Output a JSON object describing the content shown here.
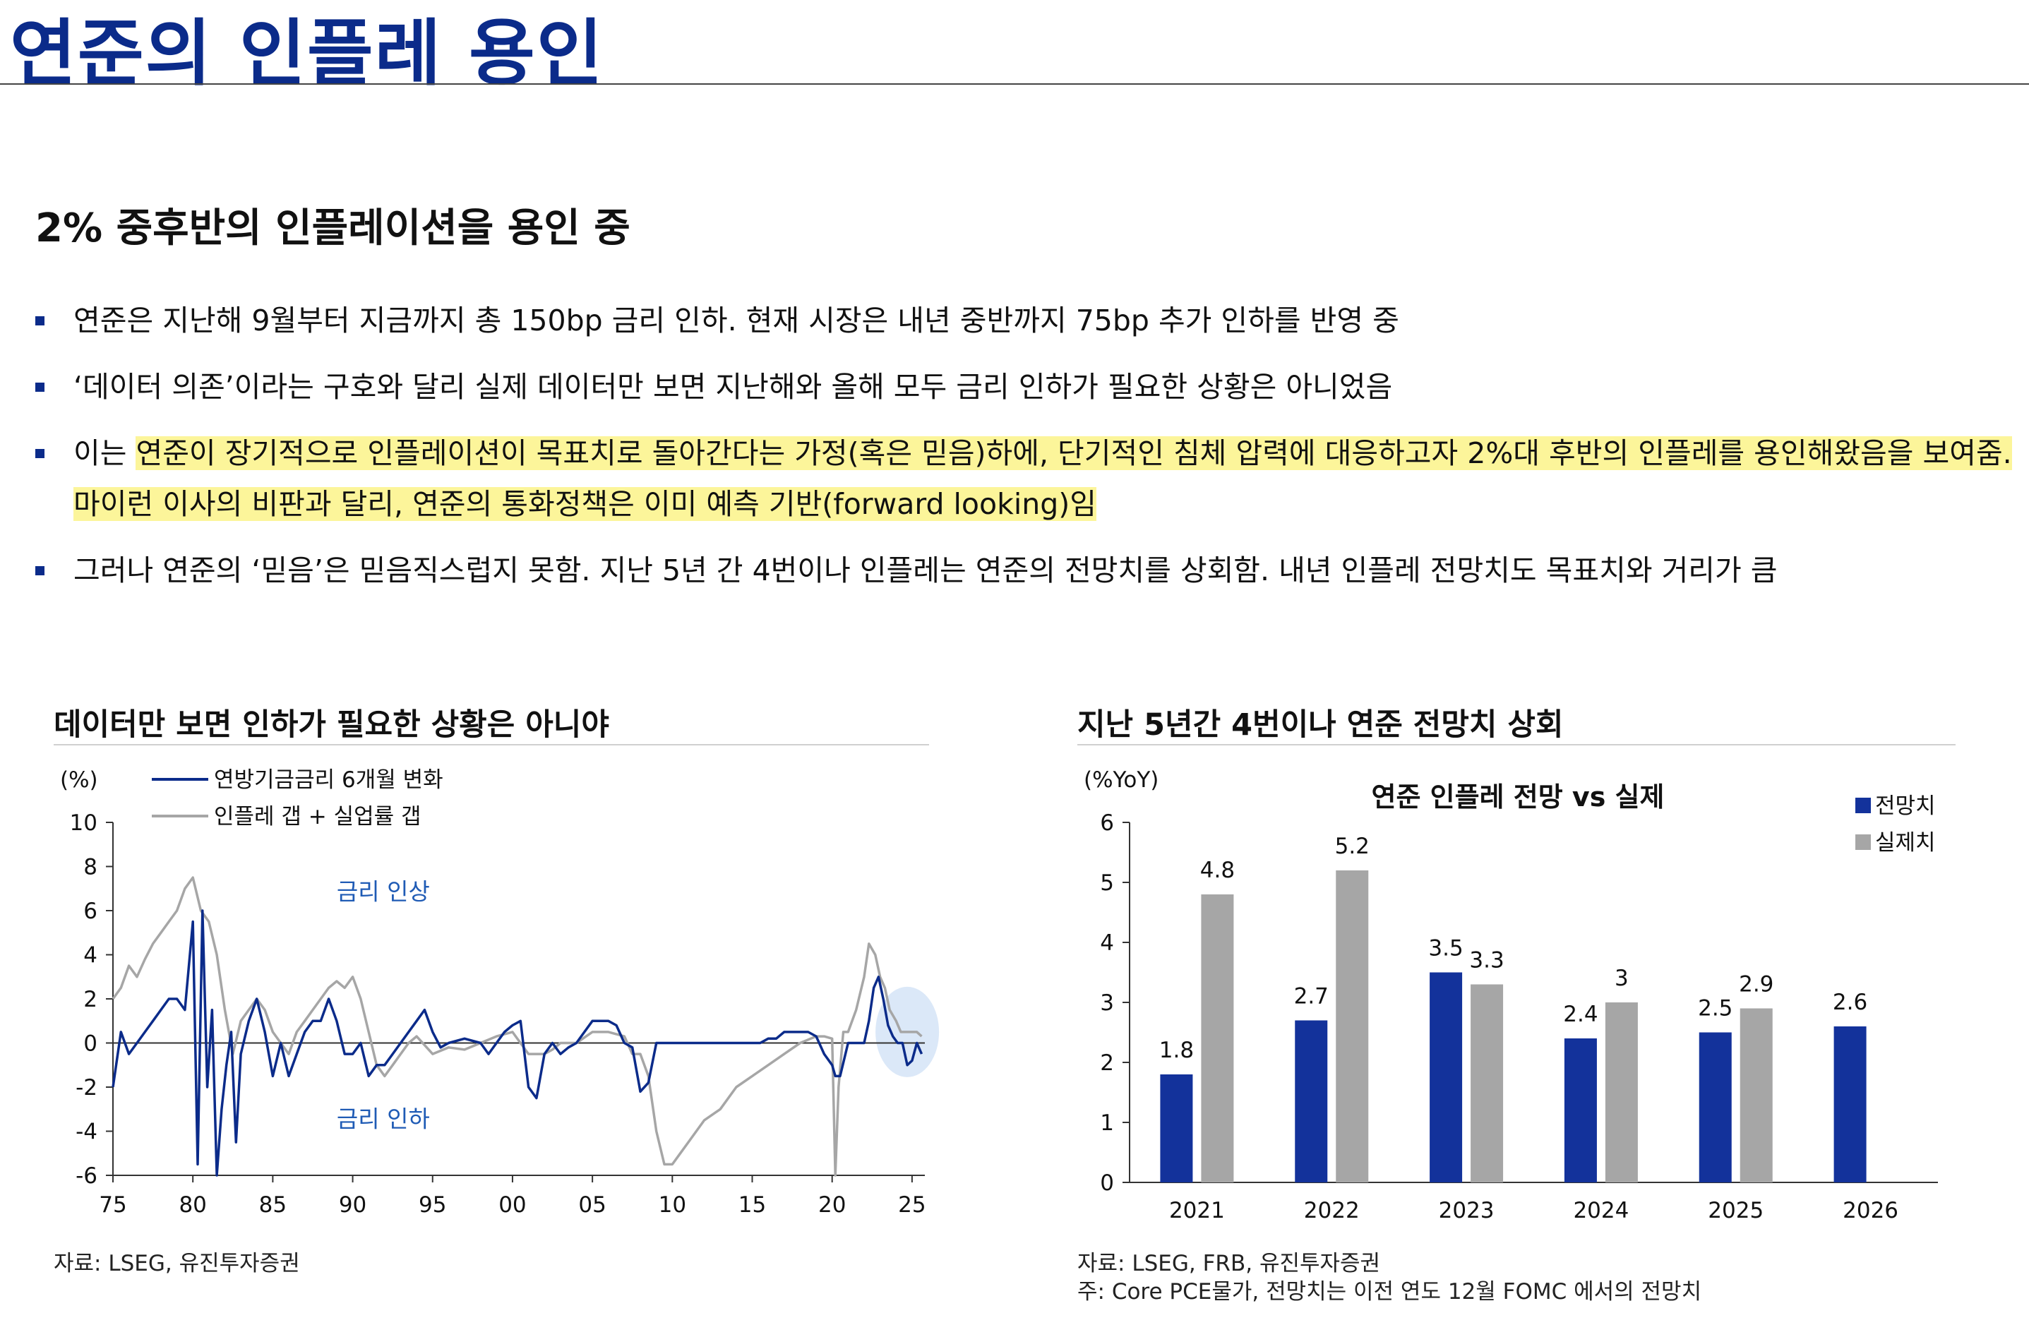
{
  "page": {
    "title": "연준의 인플레 용인",
    "subtitle": "2% 중후반의 인플레이션을 용인 중",
    "bullets": [
      {
        "pre": "연준은 지난해 9월부터 지금까지 총 150bp 금리 인하. 현재 시장은 내년 중반까지 75bp 추가 인하를 반영 중",
        "hl": "",
        "post": ""
      },
      {
        "pre": "‘데이터 의존’이라는 구호와 달리 실제 데이터만 보면 지난해와 올해 모두 금리 인하가 필요한 상황은 아니었음",
        "hl": "",
        "post": ""
      },
      {
        "pre": "이는 ",
        "hl": "연준이 장기적으로 인플레이션이 목표치로 돌아간다는 가정(혹은 믿음)하에, 단기적인 침체 압력에 대응하고자 2%대 후반의 인플레를 용인해왔음을 보여줌. 마이런 이사의 비판과 달리, 연준의 통화정책은 이미 예측 기반(forward looking)임",
        "post": ""
      },
      {
        "pre": "그러나 연준의 ‘믿음’은 믿음직스럽지 못함. 지난 5년 간 4번이나 인플레는 연준의 전망치를 상회함. 내년 인플레 전망치도 목표치와 거리가 큼",
        "hl": "",
        "post": ""
      }
    ]
  },
  "left_panel": {
    "title": "데이터만 보면 인하가 필요한 상황은 아니야",
    "source": "자료: LSEG, 유진투자증권"
  },
  "right_panel": {
    "title": "지난 5년간 4번이나 연준 전망치 상회",
    "source": "자료: LSEG, FRB, 유진투자증권",
    "note": "주: Core PCE물가, 전망치는 이전 연도 12월 FOMC 에서의 전망치"
  },
  "chart_data": [
    {
      "type": "line",
      "title": "",
      "unit_label": "(%)",
      "x_ticks": [
        "75",
        "80",
        "85",
        "90",
        "95",
        "00",
        "05",
        "10",
        "15",
        "20",
        "25"
      ],
      "x_range": [
        1975,
        2025.8
      ],
      "ylim": [
        -6,
        10
      ],
      "y_ticks": [
        10,
        8,
        6,
        4,
        2,
        0,
        -2,
        -4,
        -6
      ],
      "legend_placement": "top-left",
      "grid": false,
      "annotations": [
        {
          "text": "금리 인상",
          "x": 1989,
          "y": 6.5
        },
        {
          "text": "금리 인하",
          "x": 1989,
          "y": -3.8
        }
      ],
      "series": [
        {
          "name": "연방기금금리 6개월 변화",
          "color": "#0b2b8a",
          "x": [
            1975.0,
            1975.5,
            1976.0,
            1976.5,
            1977.0,
            1977.5,
            1978.0,
            1978.5,
            1979.0,
            1979.5,
            1980.0,
            1980.3,
            1980.6,
            1980.9,
            1981.2,
            1981.5,
            1981.8,
            1982.1,
            1982.4,
            1982.7,
            1983.0,
            1983.5,
            1984.0,
            1984.5,
            1985.0,
            1985.5,
            1986.0,
            1986.5,
            1987.0,
            1987.5,
            1988.0,
            1988.5,
            1989.0,
            1989.5,
            1990.0,
            1990.5,
            1991.0,
            1991.5,
            1992.0,
            1992.5,
            1993.0,
            1994.0,
            1994.5,
            1995.0,
            1995.5,
            1996.0,
            1997.0,
            1998.0,
            1998.5,
            1999.0,
            1999.5,
            2000.0,
            2000.5,
            2001.0,
            2001.5,
            2002.0,
            2002.5,
            2003.0,
            2003.5,
            2004.0,
            2004.5,
            2005.0,
            2005.5,
            2006.0,
            2006.5,
            2007.0,
            2007.5,
            2008.0,
            2008.5,
            2009.0,
            2010.0,
            2012.0,
            2014.0,
            2015.5,
            2016.0,
            2016.5,
            2017.0,
            2017.5,
            2018.0,
            2018.5,
            2019.0,
            2019.5,
            2020.0,
            2020.2,
            2020.5,
            2021.0,
            2021.5,
            2022.0,
            2022.3,
            2022.6,
            2022.9,
            2023.2,
            2023.5,
            2023.8,
            2024.1,
            2024.4,
            2024.7,
            2025.0,
            2025.3,
            2025.6
          ],
          "y": [
            -2.0,
            0.5,
            -0.5,
            0.0,
            0.5,
            1.0,
            1.5,
            2.0,
            2.0,
            1.5,
            5.5,
            -5.5,
            6.0,
            -2.0,
            1.5,
            -6.0,
            -3.0,
            -1.0,
            0.5,
            -4.5,
            -0.5,
            1.0,
            2.0,
            0.5,
            -1.5,
            0.0,
            -1.5,
            -0.5,
            0.5,
            1.0,
            1.0,
            2.0,
            1.0,
            -0.5,
            -0.5,
            0.0,
            -1.5,
            -1.0,
            -1.0,
            -0.5,
            0.0,
            1.0,
            1.5,
            0.5,
            -0.2,
            0.0,
            0.2,
            0.0,
            -0.5,
            0.0,
            0.5,
            0.8,
            1.0,
            -2.0,
            -2.5,
            -0.5,
            0.0,
            -0.5,
            -0.2,
            0.0,
            0.5,
            1.0,
            1.0,
            1.0,
            0.8,
            0.0,
            -0.2,
            -2.2,
            -1.8,
            0.0,
            0.0,
            0.0,
            0.0,
            0.0,
            0.2,
            0.2,
            0.5,
            0.5,
            0.5,
            0.5,
            0.3,
            -0.5,
            -1.0,
            -1.5,
            -1.5,
            0.0,
            0.0,
            0.0,
            1.0,
            2.5,
            3.0,
            2.0,
            0.8,
            0.3,
            0.0,
            0.0,
            -1.0,
            -0.8,
            0.0,
            -0.5
          ]
        },
        {
          "name": "인플레 갭 + 실업률 갭",
          "color": "#a6a6a6",
          "x": [
            1975.0,
            1975.5,
            1976.0,
            1976.5,
            1977.0,
            1977.5,
            1978.0,
            1978.5,
            1979.0,
            1979.5,
            1980.0,
            1980.5,
            1981.0,
            1981.5,
            1982.0,
            1982.5,
            1983.0,
            1983.5,
            1984.0,
            1984.5,
            1985.0,
            1985.5,
            1986.0,
            1986.5,
            1987.0,
            1987.5,
            1988.0,
            1988.5,
            1989.0,
            1989.5,
            1990.0,
            1990.5,
            1991.0,
            1991.5,
            1992.0,
            1992.5,
            1993.0,
            1993.5,
            1994.0,
            1995.0,
            1996.0,
            1997.0,
            1998.0,
            1999.0,
            2000.0,
            2001.0,
            2001.5,
            2002.0,
            2002.5,
            2003.0,
            2003.5,
            2004.0,
            2005.0,
            2006.0,
            2007.0,
            2007.5,
            2008.0,
            2008.5,
            2009.0,
            2009.5,
            2010.0,
            2010.5,
            2011.0,
            2012.0,
            2013.0,
            2014.0,
            2015.0,
            2016.0,
            2017.0,
            2018.0,
            2019.0,
            2019.5,
            2020.0,
            2020.2,
            2020.4,
            2020.7,
            2021.0,
            2021.5,
            2022.0,
            2022.3,
            2022.7,
            2023.0,
            2023.3,
            2023.6,
            2024.0,
            2024.3,
            2024.7,
            2025.0,
            2025.3,
            2025.6
          ],
          "y": [
            2.0,
            2.5,
            3.5,
            3.0,
            3.8,
            4.5,
            5.0,
            5.5,
            6.0,
            7.0,
            7.5,
            6.0,
            5.5,
            4.0,
            1.5,
            -0.5,
            1.0,
            1.5,
            2.0,
            1.5,
            0.5,
            0.0,
            -0.5,
            0.5,
            1.0,
            1.5,
            2.0,
            2.5,
            2.8,
            2.5,
            3.0,
            2.0,
            0.5,
            -1.0,
            -1.5,
            -1.0,
            -0.5,
            0.0,
            0.3,
            -0.5,
            -0.2,
            -0.3,
            0.0,
            0.3,
            0.5,
            -0.5,
            -0.5,
            -0.5,
            -0.3,
            0.0,
            0.0,
            0.0,
            0.5,
            0.5,
            0.3,
            -0.5,
            -0.5,
            -1.5,
            -4.0,
            -5.5,
            -5.5,
            -5.0,
            -4.5,
            -3.5,
            -3.0,
            -2.0,
            -1.5,
            -1.0,
            -0.5,
            0.0,
            0.3,
            0.3,
            0.2,
            -6.0,
            -2.0,
            0.5,
            0.5,
            1.5,
            3.0,
            4.5,
            4.0,
            3.0,
            2.5,
            1.5,
            1.0,
            0.5,
            0.5,
            0.5,
            0.5,
            0.3
          ]
        }
      ]
    },
    {
      "type": "bar",
      "title": "연준 인플레 전망 vs 실제",
      "unit_label": "(%YoY)",
      "categories": [
        "2021",
        "2022",
        "2023",
        "2024",
        "2025",
        "2026"
      ],
      "ylim": [
        0,
        6
      ],
      "y_ticks": [
        6,
        5,
        4,
        3,
        2,
        1,
        0
      ],
      "legend_placement": "top-right",
      "grid": false,
      "series": [
        {
          "name": "전망치",
          "color": "#13329b",
          "values": [
            1.8,
            2.7,
            3.5,
            2.4,
            2.5,
            2.6
          ]
        },
        {
          "name": "실제치",
          "color": "#a6a6a6",
          "values": [
            4.8,
            5.2,
            3.3,
            3.0,
            2.9,
            null
          ]
        }
      ],
      "data_labels": [
        [
          "1.8",
          "2.7",
          "3.5",
          "2.4",
          "2.5",
          "2.6"
        ],
        [
          "4.8",
          "5.2",
          "3.3",
          "3",
          "2.9",
          ""
        ]
      ]
    }
  ]
}
